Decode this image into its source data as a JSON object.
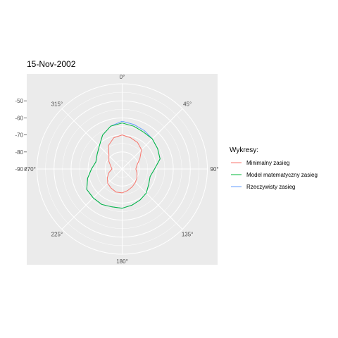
{
  "chart_data": {
    "type": "line",
    "coord": "polar",
    "title": "15-Nov-2002",
    "theta_ticks": [
      "0°",
      "45°",
      "90°",
      "135°",
      "180°",
      "225°",
      "270°",
      "315°"
    ],
    "r_ticks": [
      "-50",
      "-60",
      "-70",
      "-80",
      "-90"
    ],
    "ylim": [
      -90,
      -40
    ],
    "grid": true,
    "legend": {
      "title": "Wykresy:",
      "position": "right",
      "entries": [
        "Minimalny zasieg",
        "Model matematyczny zasieg",
        "Rzeczywisty zasieg"
      ]
    },
    "x": [
      0,
      15,
      30,
      45,
      60,
      75,
      90,
      105,
      120,
      135,
      150,
      165,
      180,
      195,
      210,
      225,
      240,
      255,
      270,
      285,
      300,
      315,
      330,
      345
    ],
    "series": [
      {
        "name": "Minimalny zasieg",
        "color": "#F8766D",
        "values": [
          -70,
          -71,
          -72,
          -74,
          -78,
          -81,
          -82,
          -81,
          -80,
          -79,
          -78,
          -77,
          -76,
          -76,
          -77,
          -78,
          -80,
          -82,
          -84,
          -83,
          -81,
          -79,
          -74,
          -71
        ]
      },
      {
        "name": "Model matematyczny zasieg",
        "color": "#00BA38",
        "values": [
          -63,
          -64,
          -65,
          -65,
          -66,
          -67,
          -71,
          -73,
          -72,
          -70,
          -69,
          -68,
          -67,
          -67,
          -66,
          -66,
          -66,
          -69,
          -72,
          -74,
          -73,
          -71,
          -67,
          -64
        ]
      },
      {
        "name": "Rzeczywisty zasieg",
        "color": "#619CFF",
        "values": [
          -62,
          -63,
          -64,
          -65,
          -66,
          -67,
          -71,
          -73,
          -72,
          -70,
          -69,
          -68,
          -67,
          -67,
          -66,
          -66,
          -66,
          -69,
          -72,
          -74,
          -73,
          -71,
          -67,
          -64
        ]
      }
    ]
  }
}
